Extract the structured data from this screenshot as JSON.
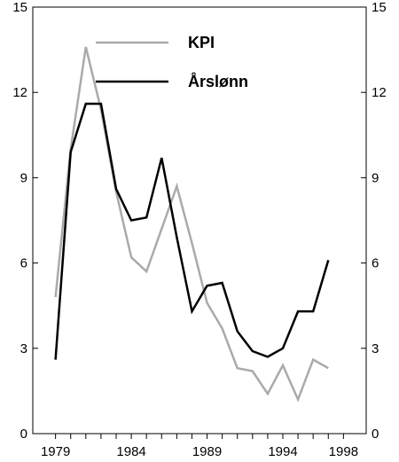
{
  "chart_data": {
    "type": "line",
    "x": [
      1979,
      1980,
      1981,
      1982,
      1983,
      1984,
      1985,
      1986,
      1987,
      1988,
      1989,
      1990,
      1991,
      1992,
      1993,
      1994,
      1995,
      1996,
      1997,
      1998
    ],
    "xticks": [
      1979,
      1984,
      1989,
      1994,
      1998
    ],
    "xlim": [
      1977.5,
      1999.5
    ],
    "ylim": [
      0,
      15
    ],
    "yticks": [
      0,
      3,
      6,
      9,
      12,
      15
    ],
    "grid": false,
    "legend_position": "top",
    "series": [
      {
        "name": "KPI",
        "color": "#aaaaaa",
        "values": [
          4.8,
          10.0,
          13.6,
          11.4,
          8.5,
          6.2,
          5.7,
          7.2,
          8.7,
          6.7,
          4.6,
          3.7,
          2.3,
          2.2,
          1.4,
          2.4,
          1.2,
          2.6,
          2.3,
          null
        ]
      },
      {
        "name": "Årslønn",
        "color": "#000000",
        "values": [
          2.6,
          9.9,
          11.6,
          11.6,
          8.6,
          7.5,
          7.6,
          9.7,
          6.9,
          4.3,
          5.2,
          5.3,
          3.6,
          2.9,
          2.7,
          3.0,
          4.3,
          4.3,
          6.1,
          null
        ]
      }
    ]
  }
}
